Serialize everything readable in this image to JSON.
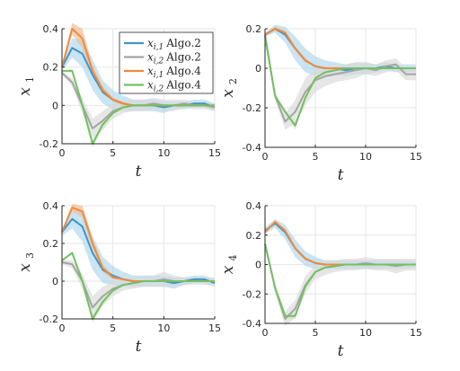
{
  "chart_data": {
    "type": "line",
    "legend": {
      "placement": "top-right of top-left panel",
      "entries": [
        {
          "var": "x",
          "sub": "i,1",
          "algo": "Algo.2",
          "color": "#3f95c9"
        },
        {
          "var": "x",
          "sub": "i,2",
          "algo": "Algo.2",
          "color": "#a5a5a5"
        },
        {
          "var": "x",
          "sub": "i,1",
          "algo": "Algo.4",
          "color": "#f08a3c"
        },
        {
          "var": "x",
          "sub": "i,2",
          "algo": "Algo.4",
          "color": "#74c062"
        }
      ]
    },
    "colors": {
      "algo2_i1": "#3f95c9",
      "algo2_i2": "#a5a5a5",
      "algo4_i1": "#f08a3c",
      "algo4_i2": "#74c062",
      "band_blue": "#acd6ec",
      "band_gray": "#d9d9d9",
      "band_orange": "#f2b98c",
      "band_green": "#cfe6c6"
    },
    "grid": true,
    "panels": [
      {
        "ylabel_var": "x",
        "ylabel_sub": "1",
        "xlabel": "t",
        "xlim": [
          0,
          15
        ],
        "ylim": [
          -0.2,
          0.4
        ],
        "xticks": [
          "0",
          "5",
          "10",
          "15"
        ],
        "yticks": [
          "-0.2",
          "0",
          "0.2",
          "0.4"
        ],
        "ytick_values": [
          -0.2,
          0,
          0.2,
          0.4
        ],
        "x": [
          0,
          1,
          2,
          3,
          4,
          5,
          6,
          7,
          8,
          9,
          10,
          11,
          12,
          13,
          14,
          15
        ],
        "series": [
          {
            "key": "algo2_i1",
            "band": "band_blue",
            "values": [
              0.2,
              0.3,
              0.27,
              0.16,
              0.07,
              0.03,
              0.01,
              0.0,
              0.0,
              0.0,
              -0.01,
              0.0,
              0.0,
              0.01,
              0.01,
              -0.01
            ],
            "spread": [
              0.02,
              0.05,
              0.07,
              0.08,
              0.06,
              0.05,
              0.04,
              0.03,
              0.03,
              0.03,
              0.03,
              0.02,
              0.02,
              0.02,
              0.02,
              0.02
            ]
          },
          {
            "key": "algo2_i2",
            "band": "band_gray",
            "values": [
              0.17,
              0.12,
              0.0,
              -0.12,
              -0.08,
              -0.03,
              -0.01,
              0.0,
              0.0,
              0.01,
              0.0,
              0.0,
              0.01,
              0.0,
              0.0,
              -0.01
            ],
            "spread": [
              0.01,
              0.02,
              0.04,
              0.05,
              0.05,
              0.04,
              0.03,
              0.03,
              0.03,
              0.03,
              0.03,
              0.03,
              0.02,
              0.02,
              0.02,
              0.02
            ]
          },
          {
            "key": "algo4_i1",
            "band": "band_orange",
            "values": [
              0.2,
              0.4,
              0.35,
              0.18,
              0.08,
              0.03,
              0.01,
              0.0,
              0.0,
              0.0,
              0.0,
              0.0,
              0.0,
              0.0,
              0.0,
              0.0
            ],
            "spread": [
              0.01,
              0.03,
              0.05,
              0.03,
              0.02,
              0.01,
              0.01,
              0.0,
              0.0,
              0.0,
              0.0,
              0.0,
              0.0,
              0.0,
              0.0,
              0.0
            ]
          },
          {
            "key": "algo4_i2",
            "band": "band_green",
            "values": [
              0.18,
              0.18,
              0.0,
              -0.2,
              -0.1,
              -0.04,
              -0.01,
              0.0,
              0.0,
              0.0,
              0.0,
              0.0,
              0.0,
              0.0,
              0.0,
              0.0
            ],
            "spread": [
              0.0,
              0.01,
              0.02,
              0.02,
              0.02,
              0.01,
              0.01,
              0.0,
              0.0,
              0.0,
              0.0,
              0.0,
              0.0,
              0.0,
              0.0,
              0.0
            ]
          }
        ]
      },
      {
        "ylabel_var": "x",
        "ylabel_sub": "2",
        "xlabel": "t",
        "xlim": [
          0,
          15
        ],
        "ylim": [
          -0.4,
          0.2
        ],
        "xticks": [
          "0",
          "5",
          "10",
          "15"
        ],
        "yticks": [
          "-0.4",
          "-0.2",
          "0",
          "0.2"
        ],
        "ytick_values": [
          -0.4,
          -0.2,
          0,
          0.2
        ],
        "x": [
          0,
          1,
          2,
          3,
          4,
          5,
          6,
          7,
          8,
          9,
          10,
          11,
          12,
          13,
          14,
          15
        ],
        "series": [
          {
            "key": "algo2_i1",
            "band": "band_blue",
            "values": [
              0.17,
              0.2,
              0.17,
              0.1,
              0.04,
              0.01,
              0.0,
              0.0,
              -0.01,
              0.0,
              0.0,
              0.0,
              0.01,
              0.0,
              0.0,
              0.0
            ],
            "spread": [
              0.01,
              0.02,
              0.04,
              0.06,
              0.06,
              0.05,
              0.04,
              0.03,
              0.03,
              0.03,
              0.03,
              0.02,
              0.02,
              0.02,
              0.02,
              0.02
            ]
          },
          {
            "key": "algo2_i2",
            "band": "band_gray",
            "values": [
              0.17,
              -0.14,
              -0.27,
              -0.22,
              -0.12,
              -0.06,
              -0.04,
              -0.03,
              -0.02,
              -0.01,
              0.0,
              -0.01,
              0.01,
              0.02,
              -0.03,
              -0.03
            ],
            "spread": [
              0.01,
              0.02,
              0.04,
              0.06,
              0.07,
              0.06,
              0.05,
              0.04,
              0.04,
              0.04,
              0.03,
              0.03,
              0.03,
              0.03,
              0.03,
              0.03
            ]
          },
          {
            "key": "algo4_i1",
            "band": "band_orange",
            "values": [
              0.17,
              0.2,
              0.18,
              0.1,
              0.04,
              0.01,
              0.0,
              0.0,
              0.0,
              0.0,
              0.0,
              0.0,
              0.0,
              0.0,
              0.0,
              0.0
            ],
            "spread": [
              0.0,
              0.01,
              0.01,
              0.01,
              0.01,
              0.0,
              0.0,
              0.0,
              0.0,
              0.0,
              0.0,
              0.0,
              0.0,
              0.0,
              0.0,
              0.0
            ]
          },
          {
            "key": "algo4_i2",
            "band": "band_green",
            "values": [
              0.16,
              -0.14,
              -0.22,
              -0.29,
              -0.15,
              -0.05,
              -0.02,
              -0.01,
              0.0,
              0.0,
              0.0,
              0.0,
              0.0,
              0.0,
              0.0,
              0.0
            ],
            "spread": [
              0.0,
              0.01,
              0.01,
              0.02,
              0.01,
              0.01,
              0.0,
              0.0,
              0.0,
              0.0,
              0.0,
              0.0,
              0.0,
              0.0,
              0.0,
              0.0
            ]
          }
        ]
      },
      {
        "ylabel_var": "x",
        "ylabel_sub": "3",
        "xlabel": "t",
        "xlim": [
          0,
          15
        ],
        "ylim": [
          -0.2,
          0.4
        ],
        "xticks": [
          "0",
          "5",
          "10",
          "15"
        ],
        "yticks": [
          "-0.2",
          "0",
          "0.2",
          "0.4"
        ],
        "ytick_values": [
          -0.2,
          0,
          0.2,
          0.4
        ],
        "x": [
          0,
          1,
          2,
          3,
          4,
          5,
          6,
          7,
          8,
          9,
          10,
          11,
          12,
          13,
          14,
          15
        ],
        "series": [
          {
            "key": "algo2_i1",
            "band": "band_blue",
            "values": [
              0.26,
              0.33,
              0.29,
              0.15,
              0.06,
              0.03,
              0.01,
              0.0,
              0.0,
              0.0,
              0.0,
              -0.01,
              0.0,
              0.01,
              0.01,
              -0.01
            ],
            "spread": [
              0.02,
              0.05,
              0.08,
              0.09,
              0.07,
              0.05,
              0.04,
              0.03,
              0.03,
              0.03,
              0.03,
              0.03,
              0.02,
              0.02,
              0.02,
              0.02
            ]
          },
          {
            "key": "algo2_i2",
            "band": "band_gray",
            "values": [
              0.1,
              0.09,
              0.0,
              -0.14,
              -0.08,
              -0.04,
              -0.02,
              -0.01,
              0.0,
              0.0,
              0.01,
              0.0,
              0.0,
              0.0,
              0.0,
              0.0
            ],
            "spread": [
              0.01,
              0.02,
              0.04,
              0.06,
              0.05,
              0.04,
              0.03,
              0.03,
              0.03,
              0.03,
              0.04,
              0.03,
              0.02,
              0.02,
              0.02,
              0.02
            ]
          },
          {
            "key": "algo4_i1",
            "band": "band_orange",
            "values": [
              0.26,
              0.39,
              0.37,
              0.2,
              0.07,
              0.02,
              0.01,
              0.0,
              0.0,
              0.0,
              0.0,
              0.0,
              0.0,
              0.0,
              0.0,
              0.0
            ],
            "spread": [
              0.01,
              0.02,
              0.03,
              0.03,
              0.02,
              0.01,
              0.0,
              0.0,
              0.0,
              0.0,
              0.0,
              0.0,
              0.0,
              0.0,
              0.0,
              0.0
            ]
          },
          {
            "key": "algo4_i2",
            "band": "band_green",
            "values": [
              0.11,
              0.15,
              0.0,
              -0.2,
              -0.11,
              -0.05,
              -0.02,
              -0.01,
              0.0,
              0.0,
              0.0,
              0.0,
              0.0,
              0.0,
              0.0,
              0.0
            ],
            "spread": [
              0.0,
              0.01,
              0.02,
              0.02,
              0.02,
              0.01,
              0.0,
              0.0,
              0.0,
              0.0,
              0.0,
              0.0,
              0.0,
              0.0,
              0.0,
              0.0
            ]
          }
        ]
      },
      {
        "ylabel_var": "x",
        "ylabel_sub": "4",
        "xlabel": "t",
        "xlim": [
          0,
          15
        ],
        "ylim": [
          -0.4,
          0.4
        ],
        "xticks": [
          "0",
          "5",
          "10",
          "15"
        ],
        "yticks": [
          "-0.4",
          "-0.2",
          "0",
          "0.2",
          "0.4"
        ],
        "ytick_values": [
          -0.4,
          -0.2,
          0,
          0.2,
          0.4
        ],
        "x": [
          0,
          1,
          2,
          3,
          4,
          5,
          6,
          7,
          8,
          9,
          10,
          11,
          12,
          13,
          14,
          15
        ],
        "series": [
          {
            "key": "algo2_i1",
            "band": "band_blue",
            "values": [
              0.23,
              0.28,
              0.22,
              0.11,
              0.04,
              0.01,
              0.0,
              0.0,
              0.0,
              0.0,
              0.0,
              0.0,
              0.0,
              0.0,
              0.0,
              0.0
            ],
            "spread": [
              0.02,
              0.03,
              0.05,
              0.06,
              0.05,
              0.04,
              0.03,
              0.03,
              0.03,
              0.03,
              0.03,
              0.03,
              0.03,
              0.03,
              0.03,
              0.02
            ]
          },
          {
            "key": "algo2_i2",
            "band": "band_gray",
            "values": [
              0.14,
              -0.16,
              -0.37,
              -0.3,
              -0.14,
              -0.05,
              -0.02,
              -0.01,
              0.0,
              0.0,
              0.01,
              0.0,
              0.0,
              -0.01,
              0.0,
              0.0
            ],
            "spread": [
              0.01,
              0.03,
              0.05,
              0.06,
              0.06,
              0.05,
              0.05,
              0.04,
              0.04,
              0.04,
              0.04,
              0.04,
              0.04,
              0.05,
              0.04,
              0.04
            ]
          },
          {
            "key": "algo4_i1",
            "band": "band_orange",
            "values": [
              0.22,
              0.29,
              0.23,
              0.11,
              0.04,
              0.01,
              0.0,
              0.0,
              0.0,
              0.0,
              0.0,
              0.0,
              0.0,
              0.0,
              0.0,
              0.0
            ],
            "spread": [
              0.0,
              0.01,
              0.01,
              0.01,
              0.01,
              0.0,
              0.0,
              0.0,
              0.0,
              0.0,
              0.0,
              0.0,
              0.0,
              0.0,
              0.0,
              0.0
            ]
          },
          {
            "key": "algo4_i2",
            "band": "band_green",
            "values": [
              0.14,
              -0.16,
              -0.35,
              -0.35,
              -0.15,
              -0.05,
              -0.02,
              -0.01,
              0.0,
              0.0,
              0.0,
              0.0,
              0.0,
              0.0,
              0.0,
              0.0
            ],
            "spread": [
              0.0,
              0.01,
              0.02,
              0.02,
              0.02,
              0.01,
              0.0,
              0.0,
              0.0,
              0.0,
              0.0,
              0.0,
              0.0,
              0.0,
              0.0,
              0.0
            ]
          }
        ]
      }
    ]
  }
}
